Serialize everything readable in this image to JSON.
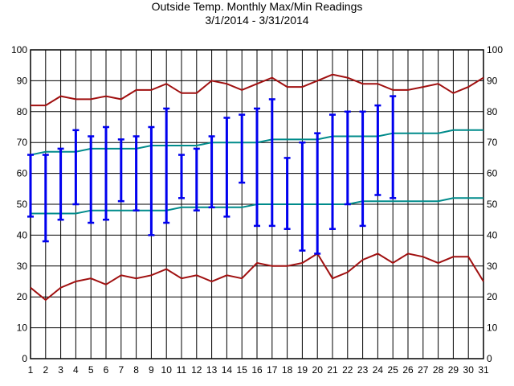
{
  "chart_data": {
    "type": "line",
    "title": "Outside Temp. Monthly Max/Min Readings",
    "subtitle": "3/1/2014 - 3/31/2014",
    "xlabel": "",
    "ylabel": "",
    "x": [
      1,
      2,
      3,
      4,
      5,
      6,
      7,
      8,
      9,
      10,
      11,
      12,
      13,
      14,
      15,
      16,
      17,
      18,
      19,
      20,
      21,
      22,
      23,
      24,
      25,
      26,
      27,
      28,
      29,
      30,
      31
    ],
    "ylim": [
      0,
      100
    ],
    "yticks": [
      0,
      10,
      20,
      30,
      40,
      50,
      60,
      70,
      80,
      90,
      100
    ],
    "grid": true,
    "colors": {
      "record": "#a01010",
      "normal": "#008b8b",
      "daily": "#0000ee",
      "grid": "#000000"
    },
    "series": [
      {
        "kind": "line",
        "role": "record-high",
        "values": [
          82,
          82,
          85,
          84,
          84,
          85,
          84,
          87,
          87,
          89,
          86,
          86,
          90,
          89,
          87,
          89,
          91,
          88,
          88,
          90,
          92,
          91,
          89,
          89,
          87,
          87,
          88,
          89,
          86,
          88,
          91
        ]
      },
      {
        "kind": "line",
        "role": "record-low",
        "values": [
          23,
          19,
          23,
          25,
          26,
          24,
          27,
          26,
          27,
          29,
          26,
          27,
          25,
          27,
          26,
          31,
          30,
          30,
          31,
          34,
          26,
          28,
          32,
          34,
          31,
          34,
          33,
          31,
          33,
          33,
          25
        ]
      },
      {
        "kind": "line",
        "role": "normal-high",
        "values": [
          66,
          67,
          67,
          67,
          68,
          68,
          68,
          68,
          69,
          69,
          69,
          69,
          70,
          70,
          70,
          70,
          71,
          71,
          71,
          71,
          72,
          72,
          72,
          72,
          73,
          73,
          73,
          73,
          74,
          74,
          74
        ]
      },
      {
        "kind": "line",
        "role": "normal-low",
        "values": [
          47,
          47,
          47,
          47,
          48,
          48,
          48,
          48,
          48,
          48,
          49,
          49,
          49,
          49,
          49,
          50,
          50,
          50,
          50,
          50,
          50,
          50,
          51,
          51,
          51,
          51,
          51,
          51,
          52,
          52,
          52
        ]
      },
      {
        "kind": "range",
        "role": "daily-max-min",
        "x": [
          1,
          2,
          3,
          4,
          5,
          6,
          7,
          8,
          9,
          10,
          11,
          12,
          13,
          14,
          15,
          16,
          17,
          18,
          19,
          20,
          21,
          22,
          23,
          24,
          25
        ],
        "high": [
          66,
          66,
          68,
          74,
          72,
          75,
          71,
          72,
          75,
          81,
          66,
          68,
          72,
          78,
          79,
          81,
          84,
          65,
          70,
          73,
          79,
          80,
          80,
          82,
          85
        ],
        "low": [
          46,
          38,
          45,
          50,
          44,
          45,
          51,
          48,
          40,
          44,
          52,
          48,
          49,
          46,
          57,
          43,
          43,
          42,
          35,
          34,
          42,
          50,
          43,
          53,
          52
        ]
      }
    ]
  }
}
